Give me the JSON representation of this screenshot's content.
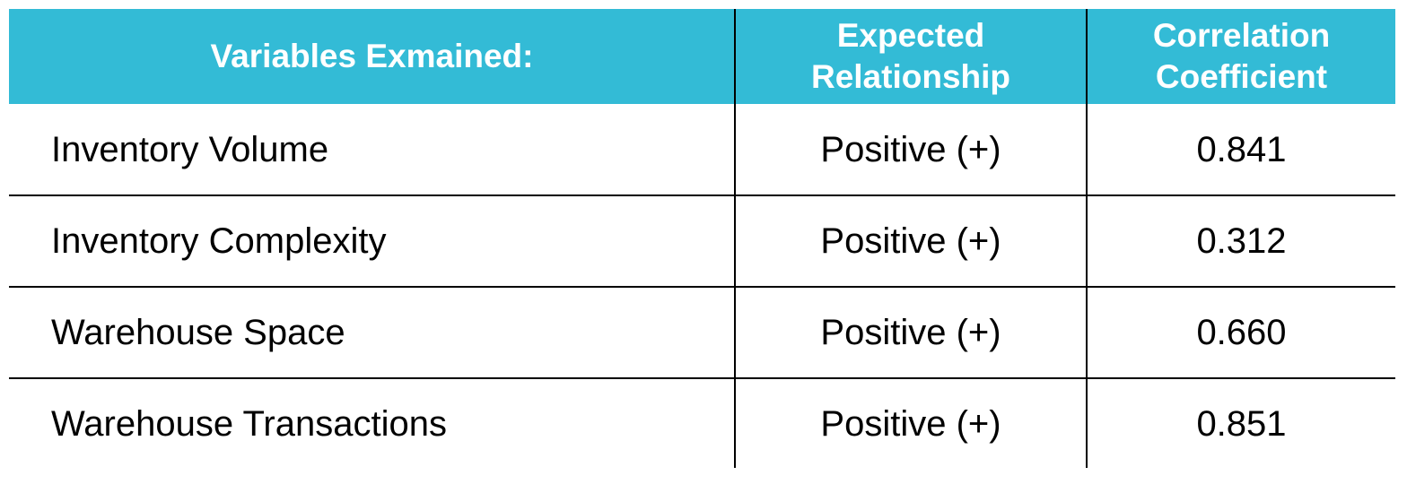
{
  "header": {
    "color": "#33bbd6",
    "columns": [
      "Variables Exmained:",
      "Expected\nRelationship",
      "Correlation\nCoefficient"
    ],
    "col1": "Variables Exmained:",
    "col2_line1": "Expected",
    "col2_line2": "Relationship",
    "col3_line1": "Correlation",
    "col3_line2": "Coefficient"
  },
  "rows": [
    {
      "variable": "Inventory Volume",
      "relationship": "Positive (+)",
      "coefficient": "0.841"
    },
    {
      "variable": "Inventory Complexity",
      "relationship": "Positive (+)",
      "coefficient": "0.312"
    },
    {
      "variable": "Warehouse Space",
      "relationship": "Positive (+)",
      "coefficient": "0.660"
    },
    {
      "variable": "Warehouse Transactions",
      "relationship": "Positive (+)",
      "coefficient": "0.851"
    }
  ]
}
